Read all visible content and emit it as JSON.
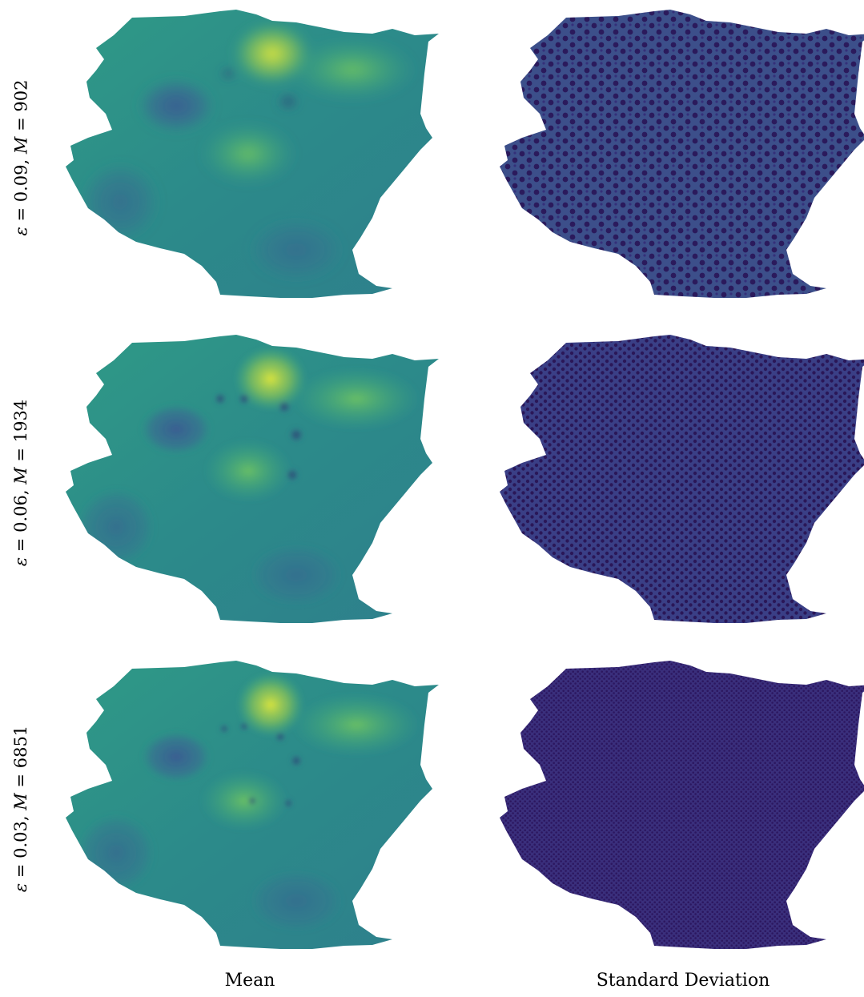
{
  "rows": [
    {
      "epsilon": "0.09",
      "M": "902"
    },
    {
      "epsilon": "0.06",
      "M": "1934"
    },
    {
      "epsilon": "0.03",
      "M": "6851"
    }
  ],
  "columns": [
    "Mean",
    "Standard Deviation"
  ],
  "symbols": {
    "epsilon": "ε",
    "M": "M",
    "eq": "=",
    "sep": ","
  },
  "colormap": "viridis",
  "colors": {
    "mean_base": "#2f8f8a",
    "mean_high": "#d8e23a",
    "mean_low": "#3b5a8f",
    "std_base": "#3b2d7a",
    "std_dots": "#2a1556",
    "background": "#ffffff"
  }
}
